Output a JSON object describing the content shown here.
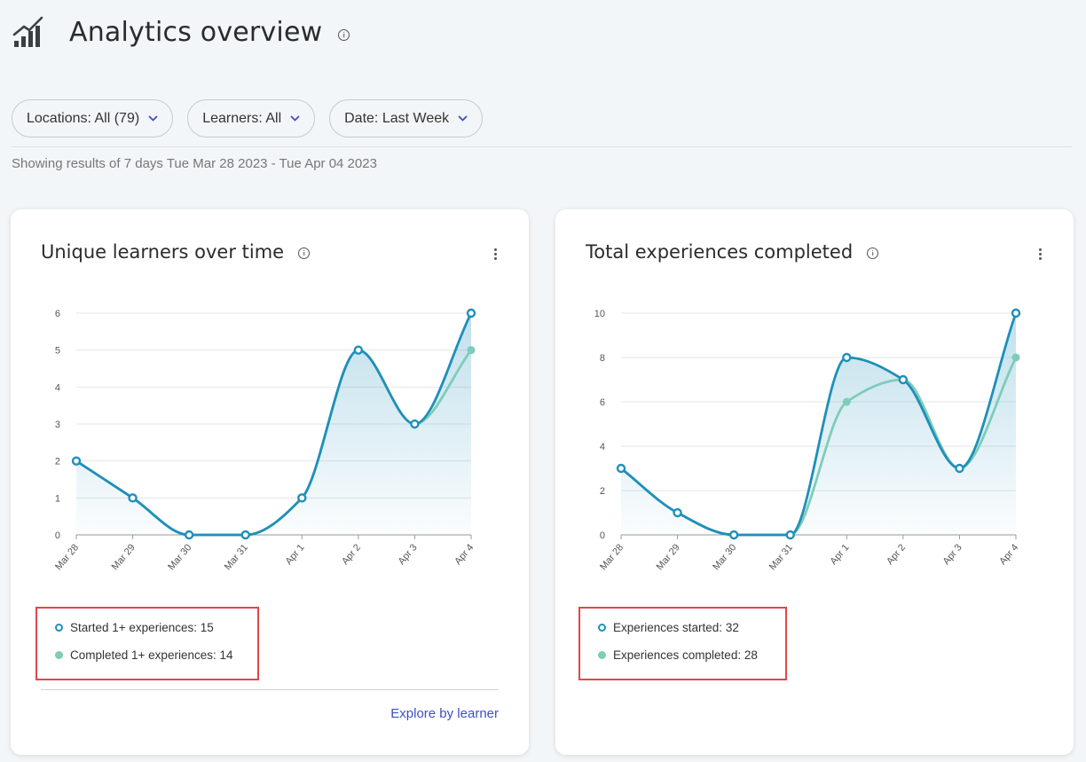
{
  "header": {
    "title": "Analytics overview"
  },
  "filters": [
    {
      "label": "Locations: All (79)"
    },
    {
      "label": "Learners: All"
    },
    {
      "label": "Date: Last Week"
    }
  ],
  "results_text": "Showing results of 7 days Tue Mar 28 2023 - Tue Apr 04 2023",
  "colors": {
    "started": "#1f8fba",
    "completed": "#7dcdb9",
    "highlight": "#e0474c",
    "link": "#3d4fc7"
  },
  "cards": [
    {
      "title": "Unique learners over time",
      "legend": [
        "Started 1+ experiences: 15",
        "Completed 1+ experiences: 14"
      ],
      "link": "Explore by learner"
    },
    {
      "title": "Total experiences completed",
      "legend": [
        "Experiences started: 32",
        "Experiences completed: 28"
      ]
    }
  ],
  "chart_data": [
    {
      "type": "area",
      "x": [
        "Mar 28",
        "Mar 29",
        "Mar 30",
        "Mar 31",
        "Apr 1",
        "Apr 2",
        "Apr 3",
        "Apr 4"
      ],
      "ylim": [
        0,
        6
      ],
      "yticks": [
        0,
        1,
        2,
        3,
        4,
        5,
        6
      ],
      "grid": true,
      "series": [
        {
          "name": "Started 1+ experiences",
          "values": [
            2,
            1,
            0,
            0,
            1,
            5,
            3,
            6
          ]
        },
        {
          "name": "Completed 1+ experiences",
          "values": [
            2,
            1,
            0,
            0,
            1,
            5,
            3,
            5
          ]
        }
      ]
    },
    {
      "type": "area",
      "x": [
        "Mar 28",
        "Mar 29",
        "Mar 30",
        "Mar 31",
        "Apr 1",
        "Apr 2",
        "Apr 3",
        "Apr 4"
      ],
      "ylim": [
        0,
        10
      ],
      "yticks": [
        0,
        2,
        4,
        6,
        8,
        10
      ],
      "grid": true,
      "series": [
        {
          "name": "Experiences started",
          "values": [
            3,
            1,
            0,
            0,
            8,
            7,
            3,
            10
          ]
        },
        {
          "name": "Experiences completed",
          "values": [
            3,
            1,
            0,
            0,
            6,
            7,
            3,
            8
          ]
        }
      ]
    }
  ]
}
